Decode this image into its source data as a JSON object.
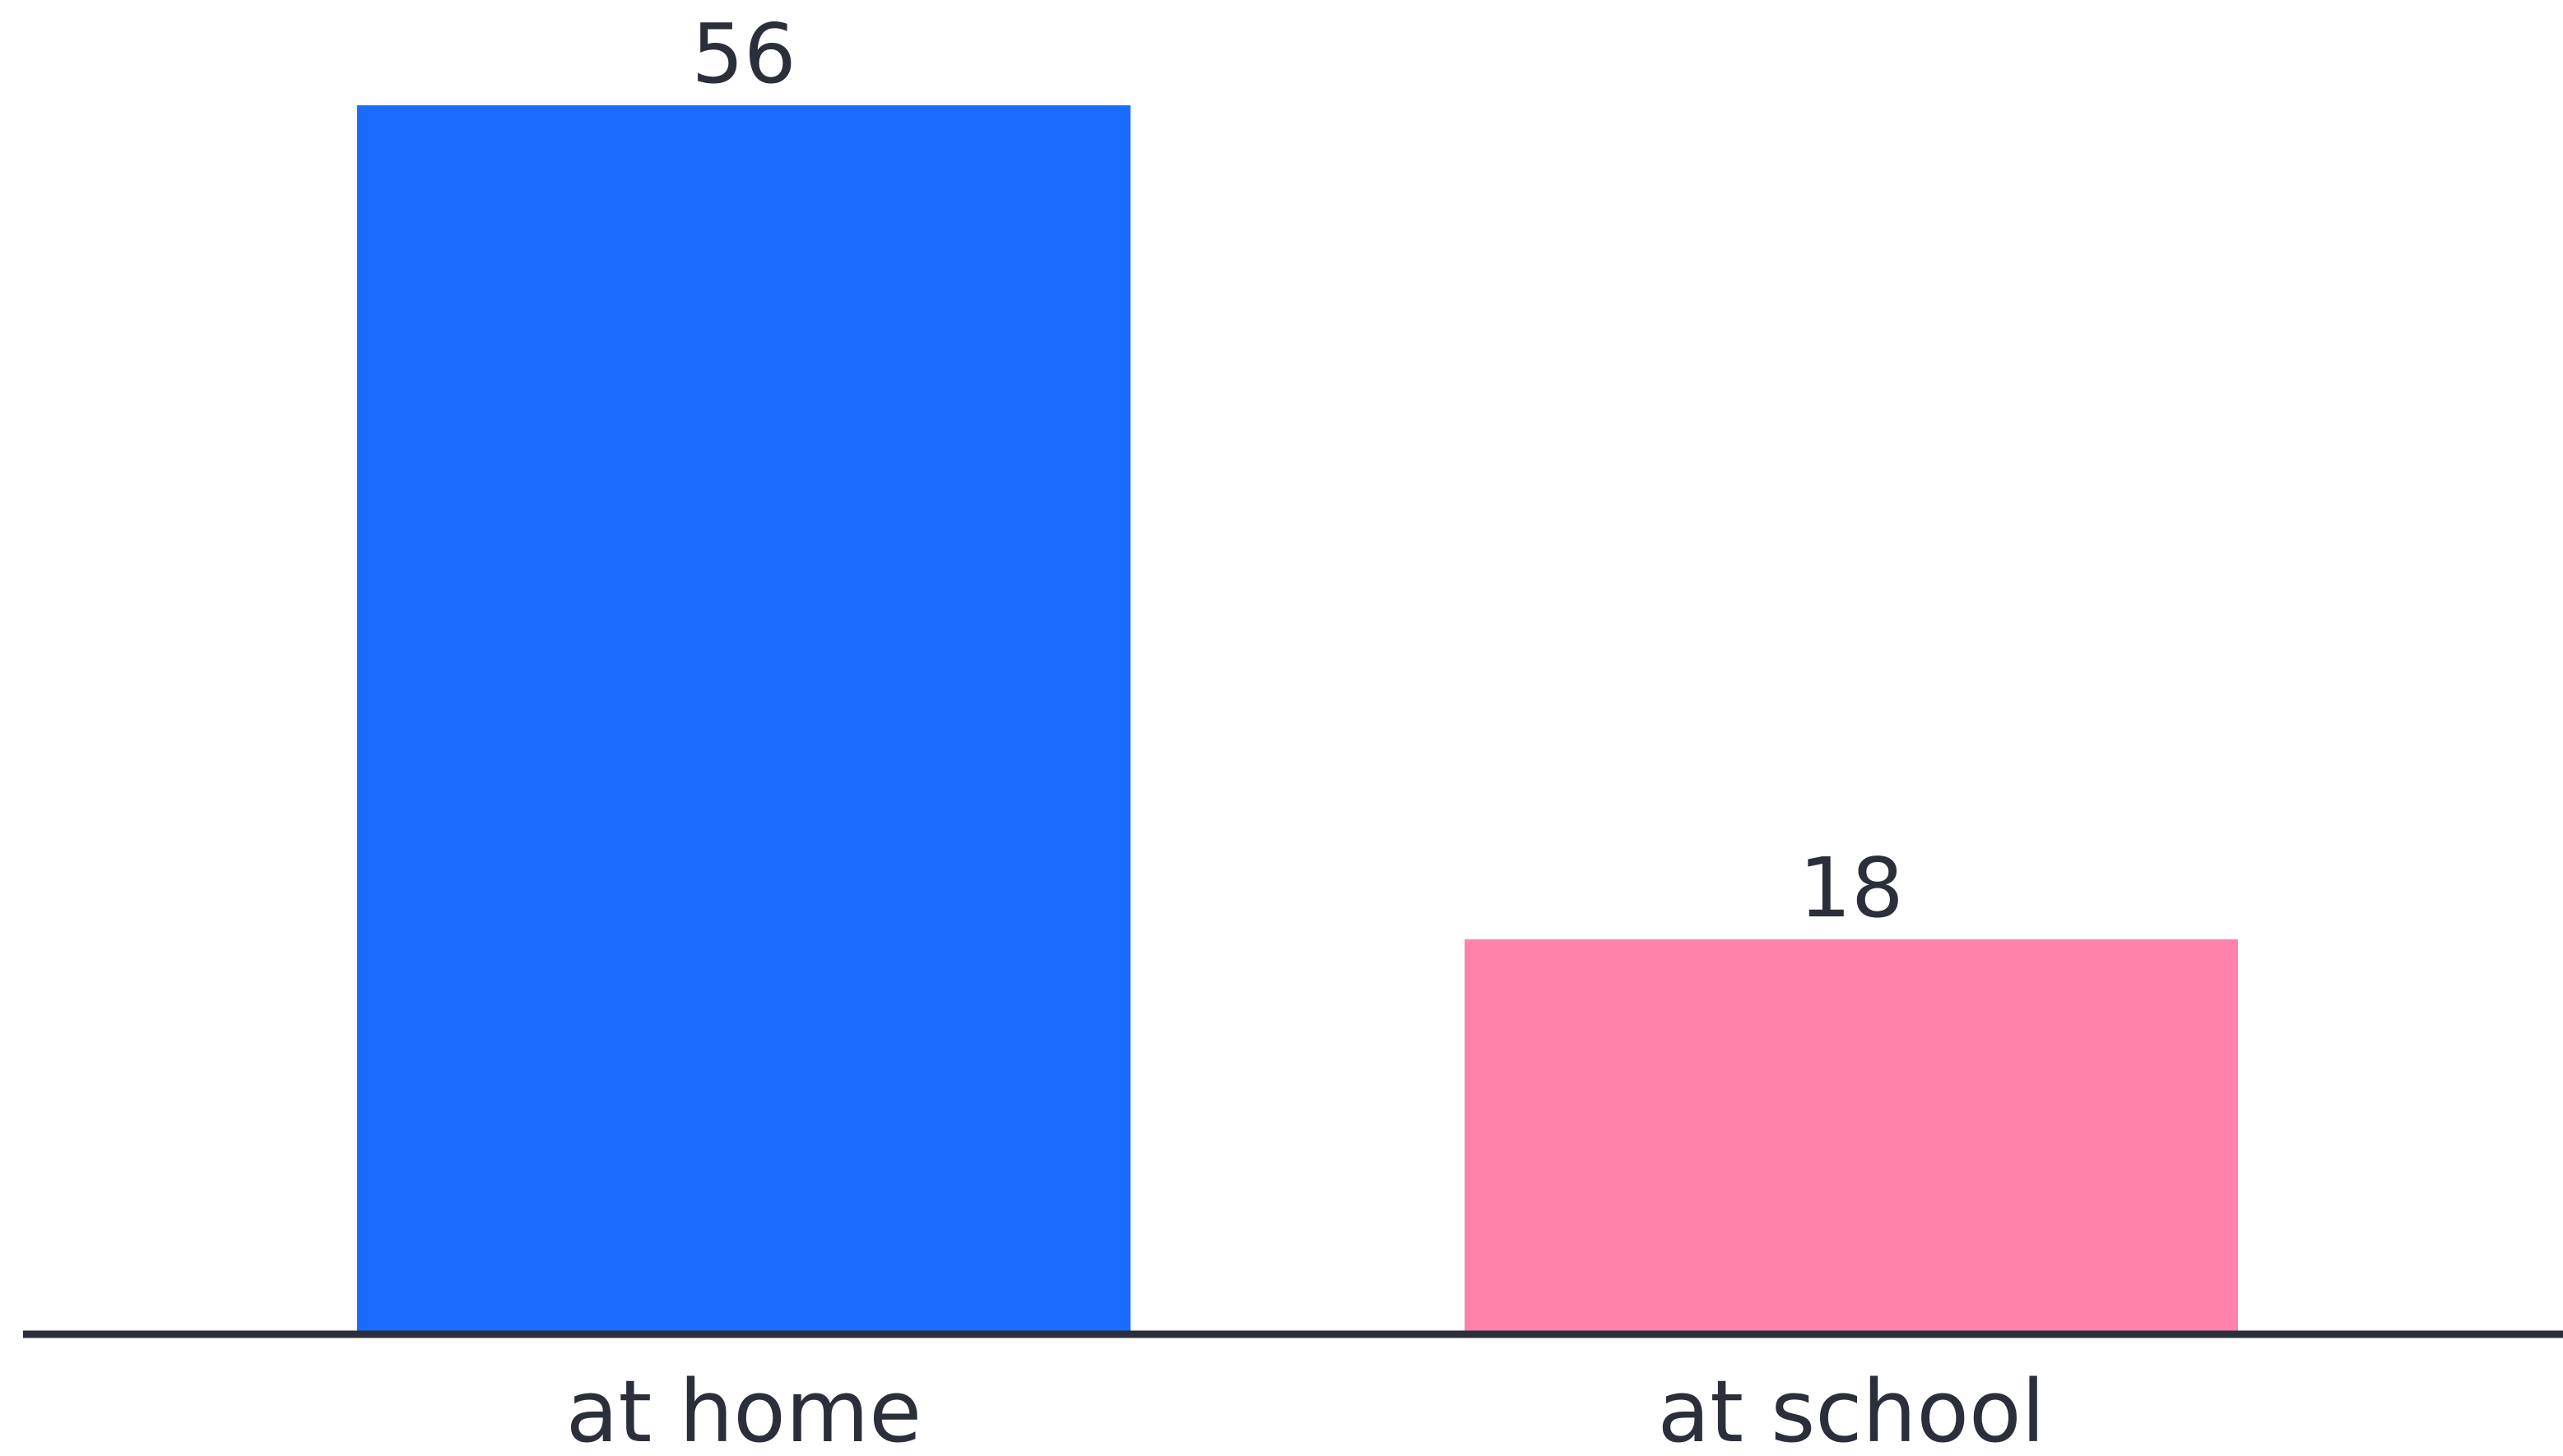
{
  "chart_data": {
    "type": "bar",
    "categories": [
      "at home",
      "at school"
    ],
    "values": [
      56,
      18
    ],
    "data_labels": [
      "56",
      "18"
    ],
    "colors": [
      "#1c6bff",
      "#ff82aa"
    ],
    "axis_color": "#2b2f3a",
    "text_color": "#2b2f3a",
    "ylim": [
      0,
      60
    ],
    "grid": false,
    "legend": "none"
  }
}
